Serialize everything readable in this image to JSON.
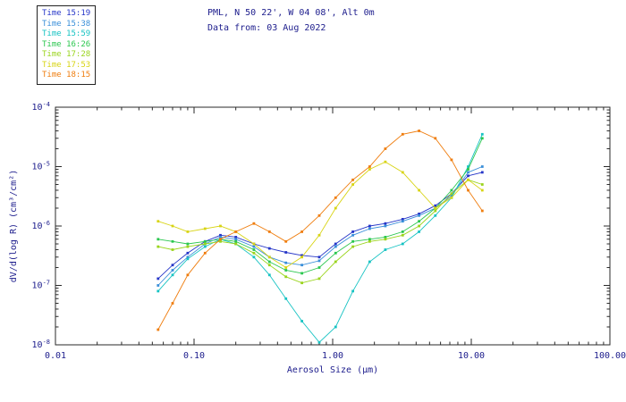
{
  "header": {
    "title": "PML, N 50 22', W 04 08', Alt 0m",
    "subtitle": "Data from: 03 Aug 2022"
  },
  "legend": {
    "items": [
      {
        "label": "Time 15:19",
        "color": "#2535c8"
      },
      {
        "label": "Time 15:38",
        "color": "#3a8fd9"
      },
      {
        "label": "Time 15:59",
        "color": "#17c3c3"
      },
      {
        "label": "Time 16:26",
        "color": "#2bc74f"
      },
      {
        "label": "Time 17:28",
        "color": "#9ad41c"
      },
      {
        "label": "Time 17:53",
        "color": "#d8d414"
      },
      {
        "label": "Time 18:15",
        "color": "#ef7d0e"
      }
    ]
  },
  "chart_data": {
    "type": "line",
    "scale": "log-log",
    "title": "PML, N 50 22', W 04 08', Alt 0m",
    "subtitle": "Data from: 03 Aug 2022",
    "xlabel": "Aerosol Size (µm)",
    "ylabel": "dV/d(log R) (cm³/cm²)",
    "xlim": [
      0.01,
      100
    ],
    "ylim": [
      1e-08,
      0.0001
    ],
    "x_tick_labels": [
      "0.01",
      "0.10",
      "1.00",
      "10.00",
      "100.00"
    ],
    "y_tick_labels": [
      "10^-8",
      "10^-7",
      "10^-6",
      "10^-5",
      "10^-4"
    ],
    "grid": false,
    "legend_position": "top-left-outside",
    "marker": "square",
    "x": [
      0.055,
      0.07,
      0.09,
      0.12,
      0.155,
      0.2,
      0.27,
      0.35,
      0.46,
      0.6,
      0.8,
      1.05,
      1.4,
      1.85,
      2.4,
      3.2,
      4.2,
      5.5,
      7.2,
      9.5,
      12.0
    ],
    "series": [
      {
        "name": "Time 15:19",
        "color": "#2535c8",
        "values": [
          1.3e-07,
          2.2e-07,
          3.5e-07,
          5.5e-07,
          7e-07,
          6.5e-07,
          5e-07,
          4.2e-07,
          3.6e-07,
          3.2e-07,
          3e-07,
          5e-07,
          8e-07,
          1e-06,
          1.1e-06,
          1.3e-06,
          1.6e-06,
          2.2e-06,
          3.5e-06,
          7e-06,
          8e-06
        ]
      },
      {
        "name": "Time 15:38",
        "color": "#3a8fd9",
        "values": [
          1e-07,
          1.8e-07,
          3e-07,
          5e-07,
          6.5e-07,
          6e-07,
          4.5e-07,
          3e-07,
          2.4e-07,
          2.2e-07,
          2.6e-07,
          4.5e-07,
          7e-07,
          9e-07,
          1e-06,
          1.2e-06,
          1.5e-06,
          2e-06,
          3.2e-06,
          8e-06,
          1e-05
        ]
      },
      {
        "name": "Time 15:59",
        "color": "#17c3c3",
        "values": [
          8e-08,
          1.5e-07,
          2.8e-07,
          4.5e-07,
          6e-07,
          5e-07,
          3e-07,
          1.5e-07,
          6e-08,
          2.5e-08,
          1.1e-08,
          2e-08,
          8e-08,
          2.5e-07,
          4e-07,
          5e-07,
          8e-07,
          1.5e-06,
          3e-06,
          1e-05,
          3.5e-05
        ]
      },
      {
        "name": "Time 16:26",
        "color": "#2bc74f",
        "values": [
          6e-07,
          5.5e-07,
          5e-07,
          5.5e-07,
          6e-07,
          5.5e-07,
          4e-07,
          2.5e-07,
          1.8e-07,
          1.6e-07,
          2e-07,
          3.5e-07,
          5.5e-07,
          6e-07,
          6.5e-07,
          8e-07,
          1.2e-06,
          2e-06,
          4e-06,
          9e-06,
          3e-05
        ]
      },
      {
        "name": "Time 17:28",
        "color": "#9ad41c",
        "values": [
          4.5e-07,
          4e-07,
          4.5e-07,
          5e-07,
          5.5e-07,
          5e-07,
          3.5e-07,
          2.2e-07,
          1.4e-07,
          1.1e-07,
          1.3e-07,
          2.5e-07,
          4.5e-07,
          5.5e-07,
          6e-07,
          7e-07,
          1e-06,
          1.8e-06,
          3.5e-06,
          6e-06,
          5e-06
        ]
      },
      {
        "name": "Time 17:53",
        "color": "#d8d414",
        "values": [
          1.2e-06,
          1e-06,
          8e-07,
          9e-07,
          1e-06,
          8e-07,
          5e-07,
          3e-07,
          2e-07,
          3e-07,
          7e-07,
          2e-06,
          5e-06,
          9e-06,
          1.2e-05,
          8e-06,
          4e-06,
          2e-06,
          3e-06,
          6e-06,
          4e-06
        ]
      },
      {
        "name": "Time 18:15",
        "color": "#ef7d0e",
        "values": [
          1.8e-08,
          5e-08,
          1.5e-07,
          3.5e-07,
          6e-07,
          8e-07,
          1.1e-06,
          8e-07,
          5.5e-07,
          8e-07,
          1.5e-06,
          3e-06,
          6e-06,
          1e-05,
          2e-05,
          3.5e-05,
          4e-05,
          3e-05,
          1.3e-05,
          4e-06,
          1.8e-06
        ]
      }
    ]
  }
}
